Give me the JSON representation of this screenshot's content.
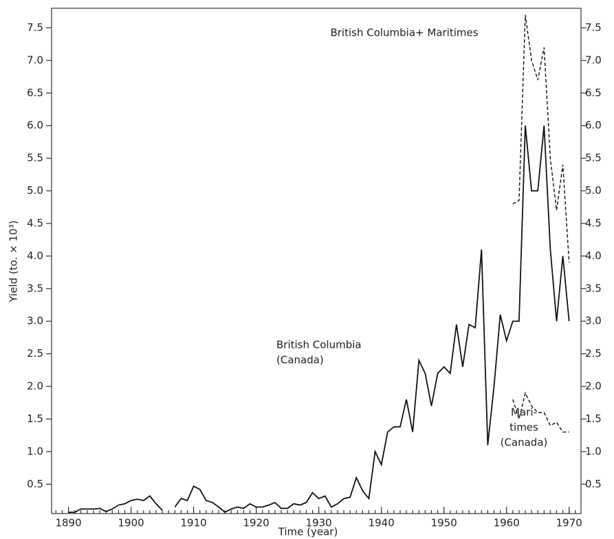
{
  "chart_data": {
    "type": "line",
    "xlabel": "Time (year)",
    "ylabel": "Yield (to. × 10³)",
    "x": [
      1890,
      1891,
      1892,
      1893,
      1894,
      1895,
      1896,
      1897,
      1898,
      1899,
      1900,
      1901,
      1902,
      1903,
      1904,
      1905,
      1906,
      1907,
      1908,
      1909,
      1910,
      1911,
      1912,
      1913,
      1914,
      1915,
      1916,
      1917,
      1918,
      1919,
      1920,
      1921,
      1922,
      1923,
      1924,
      1925,
      1926,
      1927,
      1928,
      1929,
      1930,
      1931,
      1932,
      1933,
      1934,
      1935,
      1936,
      1937,
      1938,
      1939,
      1940,
      1941,
      1942,
      1943,
      1944,
      1945,
      1946,
      1947,
      1948,
      1949,
      1950,
      1951,
      1952,
      1953,
      1954,
      1955,
      1956,
      1957,
      1958,
      1959,
      1960,
      1961,
      1962,
      1963,
      1964,
      1965,
      1966,
      1967,
      1968,
      1969,
      1970
    ],
    "series": [
      {
        "color": "#111",
        "dash": false,
        "values": [
          0.07,
          0.07,
          0.12,
          0.12,
          0.12,
          0.13,
          0.08,
          0.12,
          0.18,
          0.2,
          0.25,
          0.27,
          0.25,
          0.32,
          0.2,
          0.1,
          null,
          0.15,
          0.28,
          0.25,
          0.47,
          0.42,
          0.25,
          0.22,
          0.15,
          0.07,
          0.12,
          0.15,
          0.13,
          0.2,
          0.15,
          0.15,
          0.18,
          0.22,
          0.13,
          0.13,
          0.2,
          0.18,
          0.22,
          0.37,
          0.28,
          0.32,
          0.15,
          0.2,
          0.28,
          0.3,
          0.6,
          0.4,
          0.28,
          1.0,
          0.8,
          1.3,
          1.38,
          1.38,
          1.8,
          1.3,
          2.4,
          2.2,
          1.7,
          2.2,
          2.3,
          2.2,
          2.95,
          2.3,
          2.95,
          2.9,
          4.1,
          1.1,
          2.0,
          3.1,
          2.7,
          3.0,
          3.0,
          6.0,
          5.0,
          5.0,
          6.0,
          4.1,
          3.0,
          4.0,
          3.0
        ]
      },
      {
        "color": "#111",
        "dash": true,
        "values": [
          null,
          null,
          null,
          null,
          null,
          null,
          null,
          null,
          null,
          null,
          null,
          null,
          null,
          null,
          null,
          null,
          null,
          null,
          null,
          null,
          null,
          null,
          null,
          null,
          null,
          null,
          null,
          null,
          null,
          null,
          null,
          null,
          null,
          null,
          null,
          null,
          null,
          null,
          null,
          null,
          null,
          null,
          null,
          null,
          null,
          null,
          null,
          null,
          null,
          null,
          null,
          null,
          null,
          null,
          null,
          null,
          null,
          null,
          null,
          null,
          null,
          null,
          null,
          null,
          null,
          null,
          null,
          null,
          null,
          null,
          null,
          4.8,
          4.85,
          7.7,
          7.0,
          6.7,
          7.2,
          5.5,
          4.7,
          5.4,
          3.9
        ]
      },
      {
        "color": "#111",
        "dash": true,
        "values": [
          null,
          null,
          null,
          null,
          null,
          null,
          null,
          null,
          null,
          null,
          null,
          null,
          null,
          null,
          null,
          null,
          null,
          null,
          null,
          null,
          null,
          null,
          null,
          null,
          null,
          null,
          null,
          null,
          null,
          null,
          null,
          null,
          null,
          null,
          null,
          null,
          null,
          null,
          null,
          null,
          null,
          null,
          null,
          null,
          null,
          null,
          null,
          null,
          null,
          null,
          null,
          null,
          null,
          null,
          null,
          null,
          null,
          null,
          null,
          null,
          null,
          null,
          null,
          null,
          null,
          null,
          null,
          null,
          null,
          null,
          null,
          1.8,
          1.5,
          1.9,
          1.7,
          1.6,
          1.6,
          1.4,
          1.45,
          1.3,
          1.3
        ]
      }
    ],
    "annotations": [
      [
        "British Columbia+ Maritimes"
      ],
      [
        "British Columbia",
        "(Canada)"
      ],
      [
        "Mari-",
        "times",
        "(Canada)"
      ]
    ],
    "xlim": [
      1887.3,
      1971.9
    ],
    "xticks": [
      1890,
      1900,
      1910,
      1920,
      1930,
      1940,
      1950,
      1960,
      1970
    ],
    "ylim": [
      0.05,
      7.8
    ],
    "yticks": [
      {
        "value": 0.5,
        "label": "0.5"
      },
      {
        "value": 1,
        "label": "1.0"
      },
      {
        "value": 1.5,
        "label": "1.5"
      },
      {
        "value": 2,
        "label": "2.0"
      },
      {
        "value": 2.5,
        "label": "2.5"
      },
      {
        "value": 3,
        "label": "3.0"
      },
      {
        "value": 3.5,
        "label": "3.5"
      },
      {
        "value": 4,
        "label": "4.0"
      },
      {
        "value": 4.5,
        "label": "4.5"
      },
      {
        "value": 5,
        "label": "5.0"
      },
      {
        "value": 5.5,
        "label": "5.5"
      },
      {
        "value": 6,
        "label": "6.0"
      },
      {
        "value": 6.5,
        "label": "6.5"
      },
      {
        "value": 7,
        "label": "7.0"
      },
      {
        "value": 7.5,
        "label": "7.5"
      }
    ],
    "grid": false
  }
}
